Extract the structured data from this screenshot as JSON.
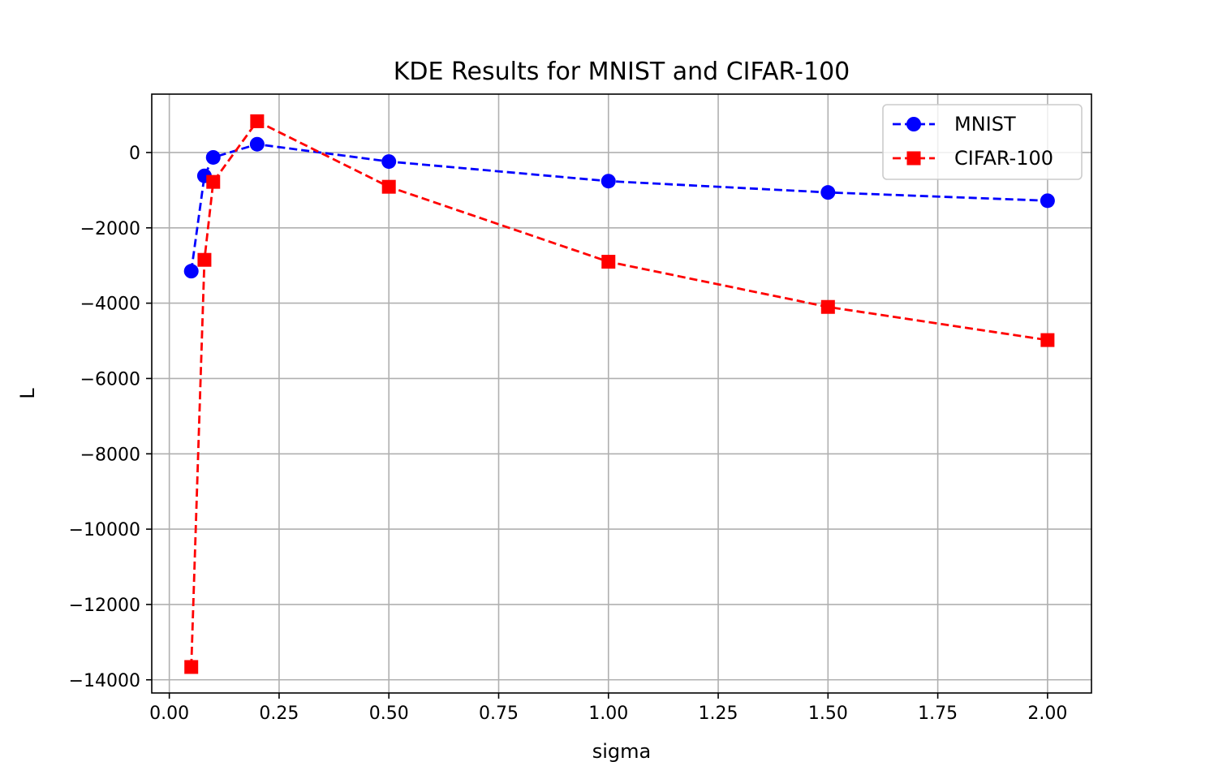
{
  "chart_data": {
    "type": "line",
    "title": "KDE Results for MNIST and CIFAR-100",
    "xlabel": "sigma",
    "ylabel": "L",
    "xlim": [
      -0.04,
      2.1
    ],
    "ylim": [
      -14350,
      1550
    ],
    "xticks": [
      0.0,
      0.25,
      0.5,
      0.75,
      1.0,
      1.25,
      1.5,
      1.75,
      2.0
    ],
    "xtick_labels": [
      "0.00",
      "0.25",
      "0.50",
      "0.75",
      "1.00",
      "1.25",
      "1.50",
      "1.75",
      "2.00"
    ],
    "yticks": [
      0,
      -2000,
      -4000,
      -6000,
      -8000,
      -10000,
      -12000,
      -14000
    ],
    "ytick_labels": [
      "0",
      "−2000",
      "−4000",
      "−6000",
      "−8000",
      "−10000",
      "−12000",
      "−14000"
    ],
    "grid": true,
    "legend_position": "top-right",
    "series": [
      {
        "name": "MNIST",
        "color": "#0000ff",
        "marker": "circle",
        "linestyle": "dashed",
        "x": [
          0.05,
          0.08,
          0.1,
          0.2,
          0.5,
          1.0,
          1.5,
          2.0
        ],
        "y": [
          -3150,
          -620,
          -130,
          220,
          -240,
          -760,
          -1060,
          -1280
        ]
      },
      {
        "name": "CIFAR-100",
        "color": "#ff0000",
        "marker": "square",
        "linestyle": "dashed",
        "x": [
          0.05,
          0.08,
          0.1,
          0.2,
          0.5,
          1.0,
          1.5,
          2.0
        ],
        "y": [
          -13660,
          -2850,
          -780,
          830,
          -910,
          -2900,
          -4100,
          -4980
        ]
      }
    ]
  }
}
